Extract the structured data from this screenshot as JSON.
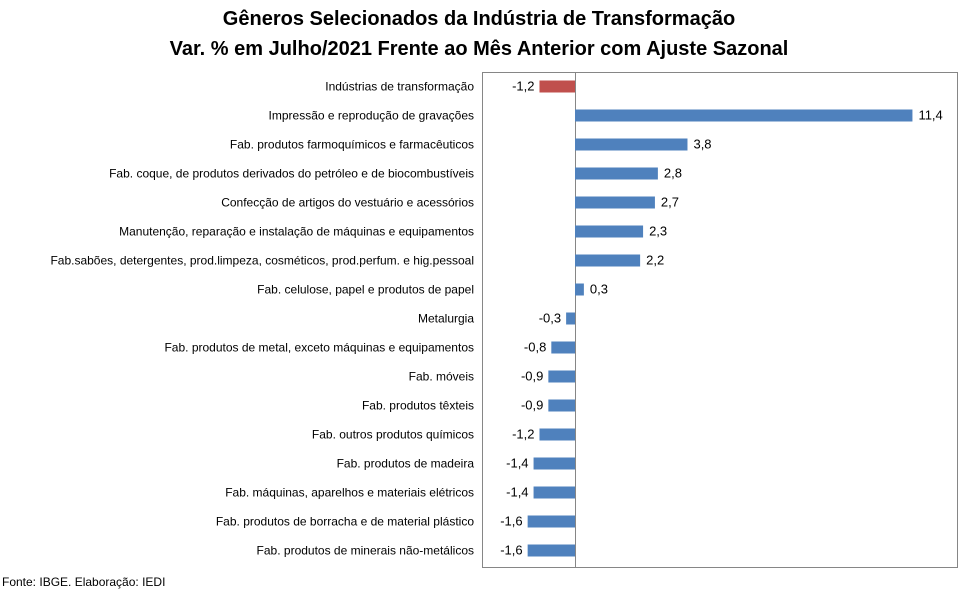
{
  "chart_data": {
    "type": "bar",
    "orientation": "horizontal",
    "title": "Gêneros Selecionados da Indústria de Transformação",
    "subtitle": "Var. % em Julho/2021 Frente ao Mês Anterior com Ajuste Sazonal",
    "categories": [
      "Indústrias de transformação",
      "Impressão e reprodução de gravações",
      "Fab. produtos farmoquímicos e farmacêuticos",
      "Fab. coque, de produtos derivados do petróleo e de biocombustíveis",
      "Confecção de artigos do vestuário e acessórios",
      "Manutenção, reparação e instalação de máquinas e equipamentos",
      "Fab.sabões, detergentes, prod.limpeza, cosméticos, prod.perfum. e hig.pessoal",
      "Fab. celulose, papel e produtos de papel",
      "Metalurgia",
      "Fab. produtos de metal, exceto máquinas e equipamentos",
      "Fab. móveis",
      "Fab. produtos têxteis",
      "Fab. outros produtos químicos",
      "Fab. produtos de madeira",
      "Fab. máquinas, aparelhos e materiais elétricos",
      "Fab. produtos de borracha e de material plástico",
      "Fab. produtos de minerais não-metálicos"
    ],
    "values": [
      -1.2,
      11.4,
      3.8,
      2.8,
      2.7,
      2.3,
      2.2,
      0.3,
      -0.3,
      -0.8,
      -0.9,
      -0.9,
      -1.2,
      -1.4,
      -1.4,
      -1.6,
      -1.6
    ],
    "value_labels": [
      "-1,2",
      "11,4",
      "3,8",
      "2,8",
      "2,7",
      "2,3",
      "2,2",
      "0,3",
      "-0,3",
      "-0,8",
      "-0,9",
      "-0,9",
      "-1,2",
      "-1,4",
      "-1,4",
      "-1,6",
      "-1,6"
    ],
    "highlight_index": 0,
    "colors": {
      "bar": "#4f81bd",
      "highlight": "#c0504d",
      "axis": "#868686",
      "frame": "#868686"
    },
    "xlim": [
      -2,
      12
    ],
    "grid": false,
    "legend": "none"
  },
  "footer": {
    "source": "Fonte: IBGE. Elaboração: IEDI"
  }
}
